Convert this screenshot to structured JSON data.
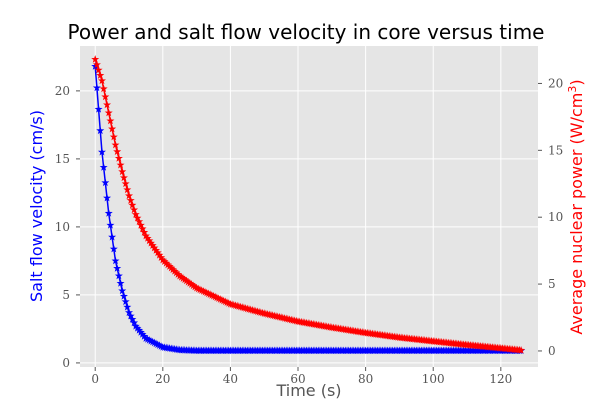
{
  "chart_data": {
    "type": "line",
    "title": "Power and salt flow velocity in core versus time",
    "xlabel": "Time (s)",
    "ylabel_left": "Salt flow velocity (cm/s)",
    "ylabel_right_main": "Average nuclear power (W/cm",
    "ylabel_right_sup": "3",
    "ylabel_right_end": ")",
    "xlim": [
      -4.5,
      131
    ],
    "ylim_left": [
      -0.3,
      23.3
    ],
    "ylim_right": [
      -1.2,
      22.8
    ],
    "xticks": [
      0,
      20,
      40,
      60,
      80,
      100,
      120
    ],
    "yticks_left": [
      0,
      5,
      10,
      15,
      20
    ],
    "yticks_right": [
      0,
      5,
      10,
      15,
      20
    ],
    "grid": true,
    "plot_background": "#e5e5e5",
    "series": [
      {
        "axis": "left",
        "color": "#0000ff",
        "marker": "star",
        "start": 0,
        "end": 126,
        "step": 0.5,
        "x": [
          0,
          2,
          4,
          6,
          8,
          10,
          12,
          15,
          20,
          25,
          30,
          40,
          50,
          60,
          80,
          100,
          126
        ],
        "y": [
          21.8,
          15.5,
          11.0,
          7.5,
          5.3,
          3.7,
          2.7,
          1.8,
          1.15,
          0.95,
          0.9,
          0.9,
          0.9,
          0.9,
          0.9,
          0.9,
          0.9
        ]
      },
      {
        "axis": "right",
        "color": "#ff0000",
        "marker": "star",
        "start": 0,
        "end": 126,
        "step": 0.5,
        "x": [
          0,
          2,
          4,
          6,
          8,
          10,
          12,
          15,
          20,
          25,
          30,
          40,
          50,
          60,
          70,
          80,
          90,
          100,
          110,
          120,
          126
        ],
        "y": [
          21.8,
          20.2,
          17.8,
          15.4,
          13.4,
          11.6,
          10.2,
          8.6,
          6.8,
          5.6,
          4.7,
          3.5,
          2.8,
          2.2,
          1.75,
          1.35,
          1.0,
          0.72,
          0.45,
          0.2,
          0.05
        ]
      }
    ]
  }
}
